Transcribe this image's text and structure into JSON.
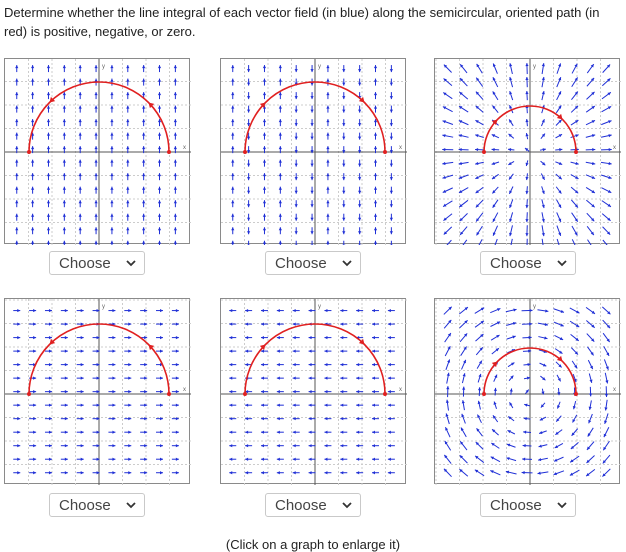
{
  "question": "Determine whether the line integral of each vector field (in blue) along the semicircular, oriented path (in red) is positive, negative, or zero.",
  "graphs": [
    {
      "field": "vertical-varying",
      "path_direction": "counterclockwise",
      "dropdown": {
        "selected": "Choose"
      }
    },
    {
      "field": "vertical-alternating",
      "path_direction": "clockwise",
      "dropdown": {
        "selected": "Choose"
      }
    },
    {
      "field": "radial-outward",
      "path_direction": "clockwise",
      "dropdown": {
        "selected": "Choose"
      }
    },
    {
      "field": "horizontal-rightward",
      "path_direction": "counterclockwise",
      "dropdown": {
        "selected": "Choose"
      }
    },
    {
      "field": "horizontal-leftward",
      "path_direction": "clockwise",
      "dropdown": {
        "selected": "Choose"
      }
    },
    {
      "field": "rotational-clockwise",
      "path_direction": "clockwise",
      "dropdown": {
        "selected": "Choose"
      }
    }
  ],
  "axis_labels": {
    "y": "y",
    "x": "x"
  },
  "footer": "(Click on a graph to enlarge it)",
  "colors": {
    "field": "#1f2fd6",
    "path": "#e02020",
    "grid": "#cccccc",
    "axis": "#555555"
  }
}
